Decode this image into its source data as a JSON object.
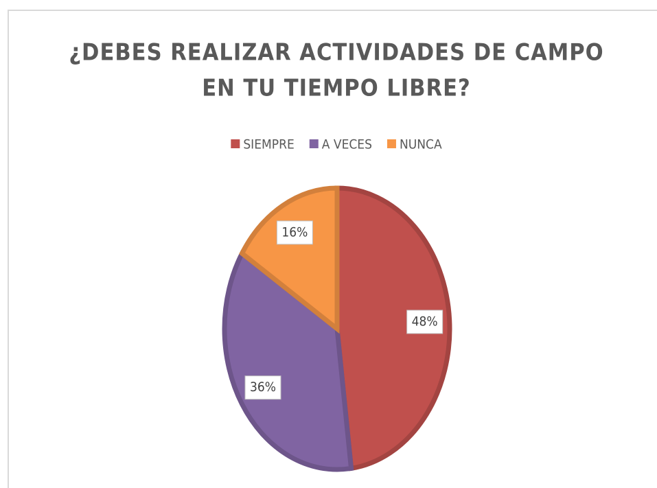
{
  "chart_data": {
    "type": "pie",
    "title": [
      "¿DEBES REALIZAR ACTIVIDADES DE CAMPO",
      "EN TU TIEMPO LIBRE?"
    ],
    "categories": [
      "SIEMPRE",
      "A VECES",
      "NUNCA"
    ],
    "values": [
      48,
      36,
      16
    ],
    "value_labels": [
      "48%",
      "36%",
      "16%"
    ],
    "colors": [
      "#c0504d",
      "#8064a2",
      "#f79646"
    ],
    "legend": "top"
  }
}
